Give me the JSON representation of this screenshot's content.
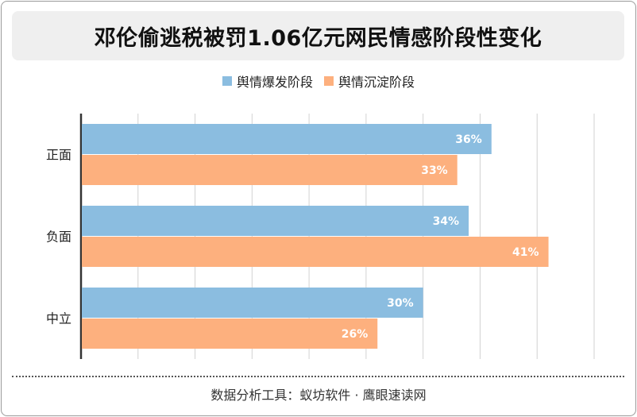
{
  "chart_data": {
    "type": "bar",
    "orientation": "horizontal",
    "title": "邓伦偷逃税被罚1.06亿元网民情感阶段性变化",
    "categories": [
      "正面",
      "负面",
      "中立"
    ],
    "series": [
      {
        "name": "舆情爆发阶段",
        "color": "#8bbde0",
        "values": [
          36,
          34,
          30
        ],
        "labels": [
          "36%",
          "34%",
          "30%"
        ]
      },
      {
        "name": "舆情沉淀阶段",
        "color": "#fdb07e",
        "values": [
          33,
          41,
          26
        ],
        "labels": [
          "33%",
          "41%",
          "26%"
        ]
      }
    ],
    "xlim": [
      0,
      45
    ],
    "grid": true,
    "legend": "top-center"
  },
  "footer": {
    "source": "数据分析工具：蚁坊软件 · 鹰眼速读网"
  }
}
